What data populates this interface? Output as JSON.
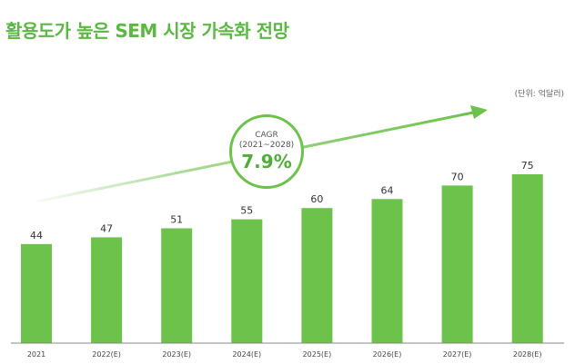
{
  "title": "활용도가 높은 SEM 시장 가속화 전망",
  "unit_note": "(단위: 억달러)",
  "cagr": {
    "label": "CAGR",
    "period": "(2021~2028)",
    "value": "7.9%"
  },
  "colors": {
    "title": "#5bb843",
    "bar": "#6cc24a",
    "arrow": "#6cc24a"
  },
  "chart_data": {
    "type": "bar",
    "categories": [
      "2021",
      "2022(E)",
      "2023(E)",
      "2024(E)",
      "2025(E)",
      "2026(E)",
      "2027(E)",
      "2028(E)"
    ],
    "values": [
      44,
      47,
      51,
      55,
      60,
      64,
      70,
      75
    ],
    "title": "활용도가 높은 SEM 시장 가속화 전망",
    "xlabel": "",
    "ylabel": "",
    "ylim": [
      0,
      80
    ],
    "grid": false,
    "data_labels": true
  }
}
